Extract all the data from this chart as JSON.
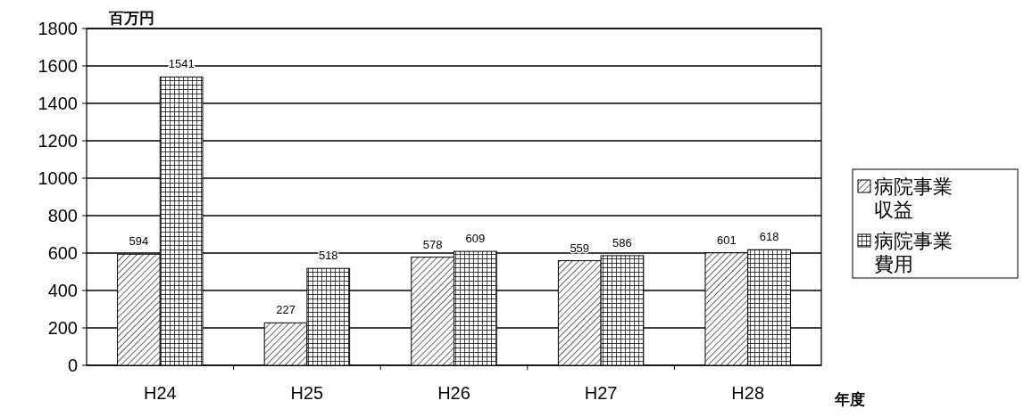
{
  "chart_data": {
    "type": "bar",
    "ylabel": "百万円",
    "xlabel": "年度",
    "categories": [
      "H24",
      "H25",
      "H26",
      "H27",
      "H28"
    ],
    "series": [
      {
        "name": "病院事業収益",
        "color": "#000000",
        "values": [
          594,
          227,
          578,
          559,
          601
        ]
      },
      {
        "name": "病院事業費用",
        "color": "#000000",
        "values": [
          1541,
          518,
          609,
          586,
          618
        ]
      }
    ],
    "ylim": [
      0,
      1800
    ],
    "yticks": [
      0,
      200,
      400,
      600,
      800,
      1000,
      1200,
      1400,
      1600,
      1800
    ],
    "grid": "y",
    "legend": "right",
    "data_labels": true
  }
}
